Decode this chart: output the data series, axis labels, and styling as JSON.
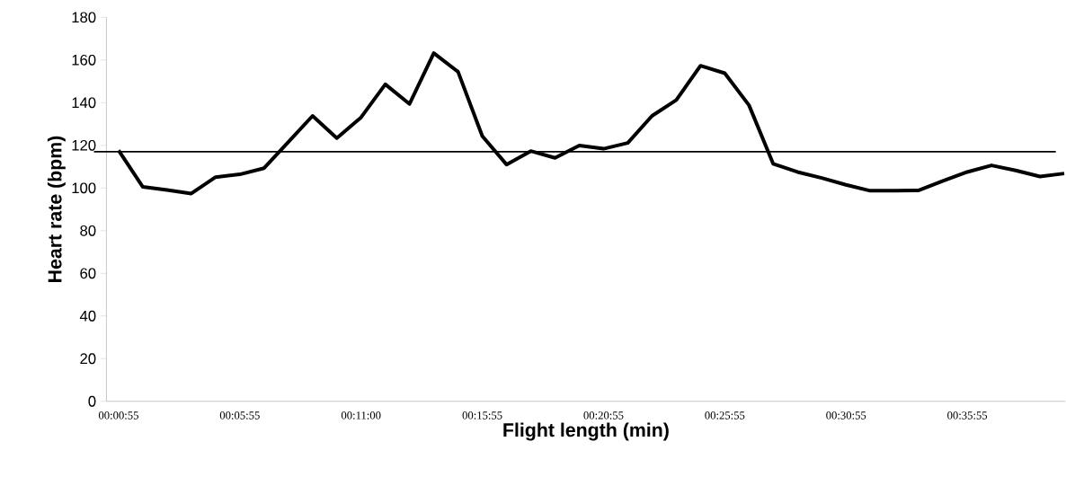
{
  "chart_data": {
    "type": "line",
    "xlabel": "Flight length (min)",
    "ylabel": "Heart rate (bpm)",
    "categories": [
      "00:00:55",
      null,
      null,
      null,
      null,
      "00:05:55",
      null,
      null,
      null,
      null,
      "00:11:00",
      null,
      null,
      null,
      null,
      "00:15:55",
      null,
      null,
      null,
      null,
      "00:20:55",
      null,
      null,
      null,
      null,
      "00:25:55",
      null,
      null,
      null,
      null,
      "00:30:55",
      null,
      null,
      null,
      null,
      "00:35:55",
      null,
      null,
      null,
      null
    ],
    "values": [
      117.6,
      100.5,
      99.1,
      97.4,
      105.1,
      106.4,
      109.3,
      121.5,
      133.8,
      123.4,
      133.1,
      148.6,
      139.4,
      163.2,
      154.5,
      124.3,
      111.0,
      117.3,
      114.1,
      119.9,
      118.4,
      121.1,
      133.8,
      141.2,
      157.3,
      153.8,
      138.8,
      111.3,
      107.5,
      104.7,
      101.5,
      98.7,
      98.7,
      98.9,
      103.3,
      107.5,
      110.6,
      108.2,
      105.4,
      106.8
    ],
    "color": "#000000",
    "line_style": "solid",
    "ylim": [
      0,
      180
    ],
    "yticks": [
      0,
      20,
      40,
      60,
      80,
      100,
      120,
      140,
      160,
      180
    ],
    "ref_lines": [
      {
        "axis": "y",
        "value": 117,
        "color": "#000000"
      }
    ]
  }
}
